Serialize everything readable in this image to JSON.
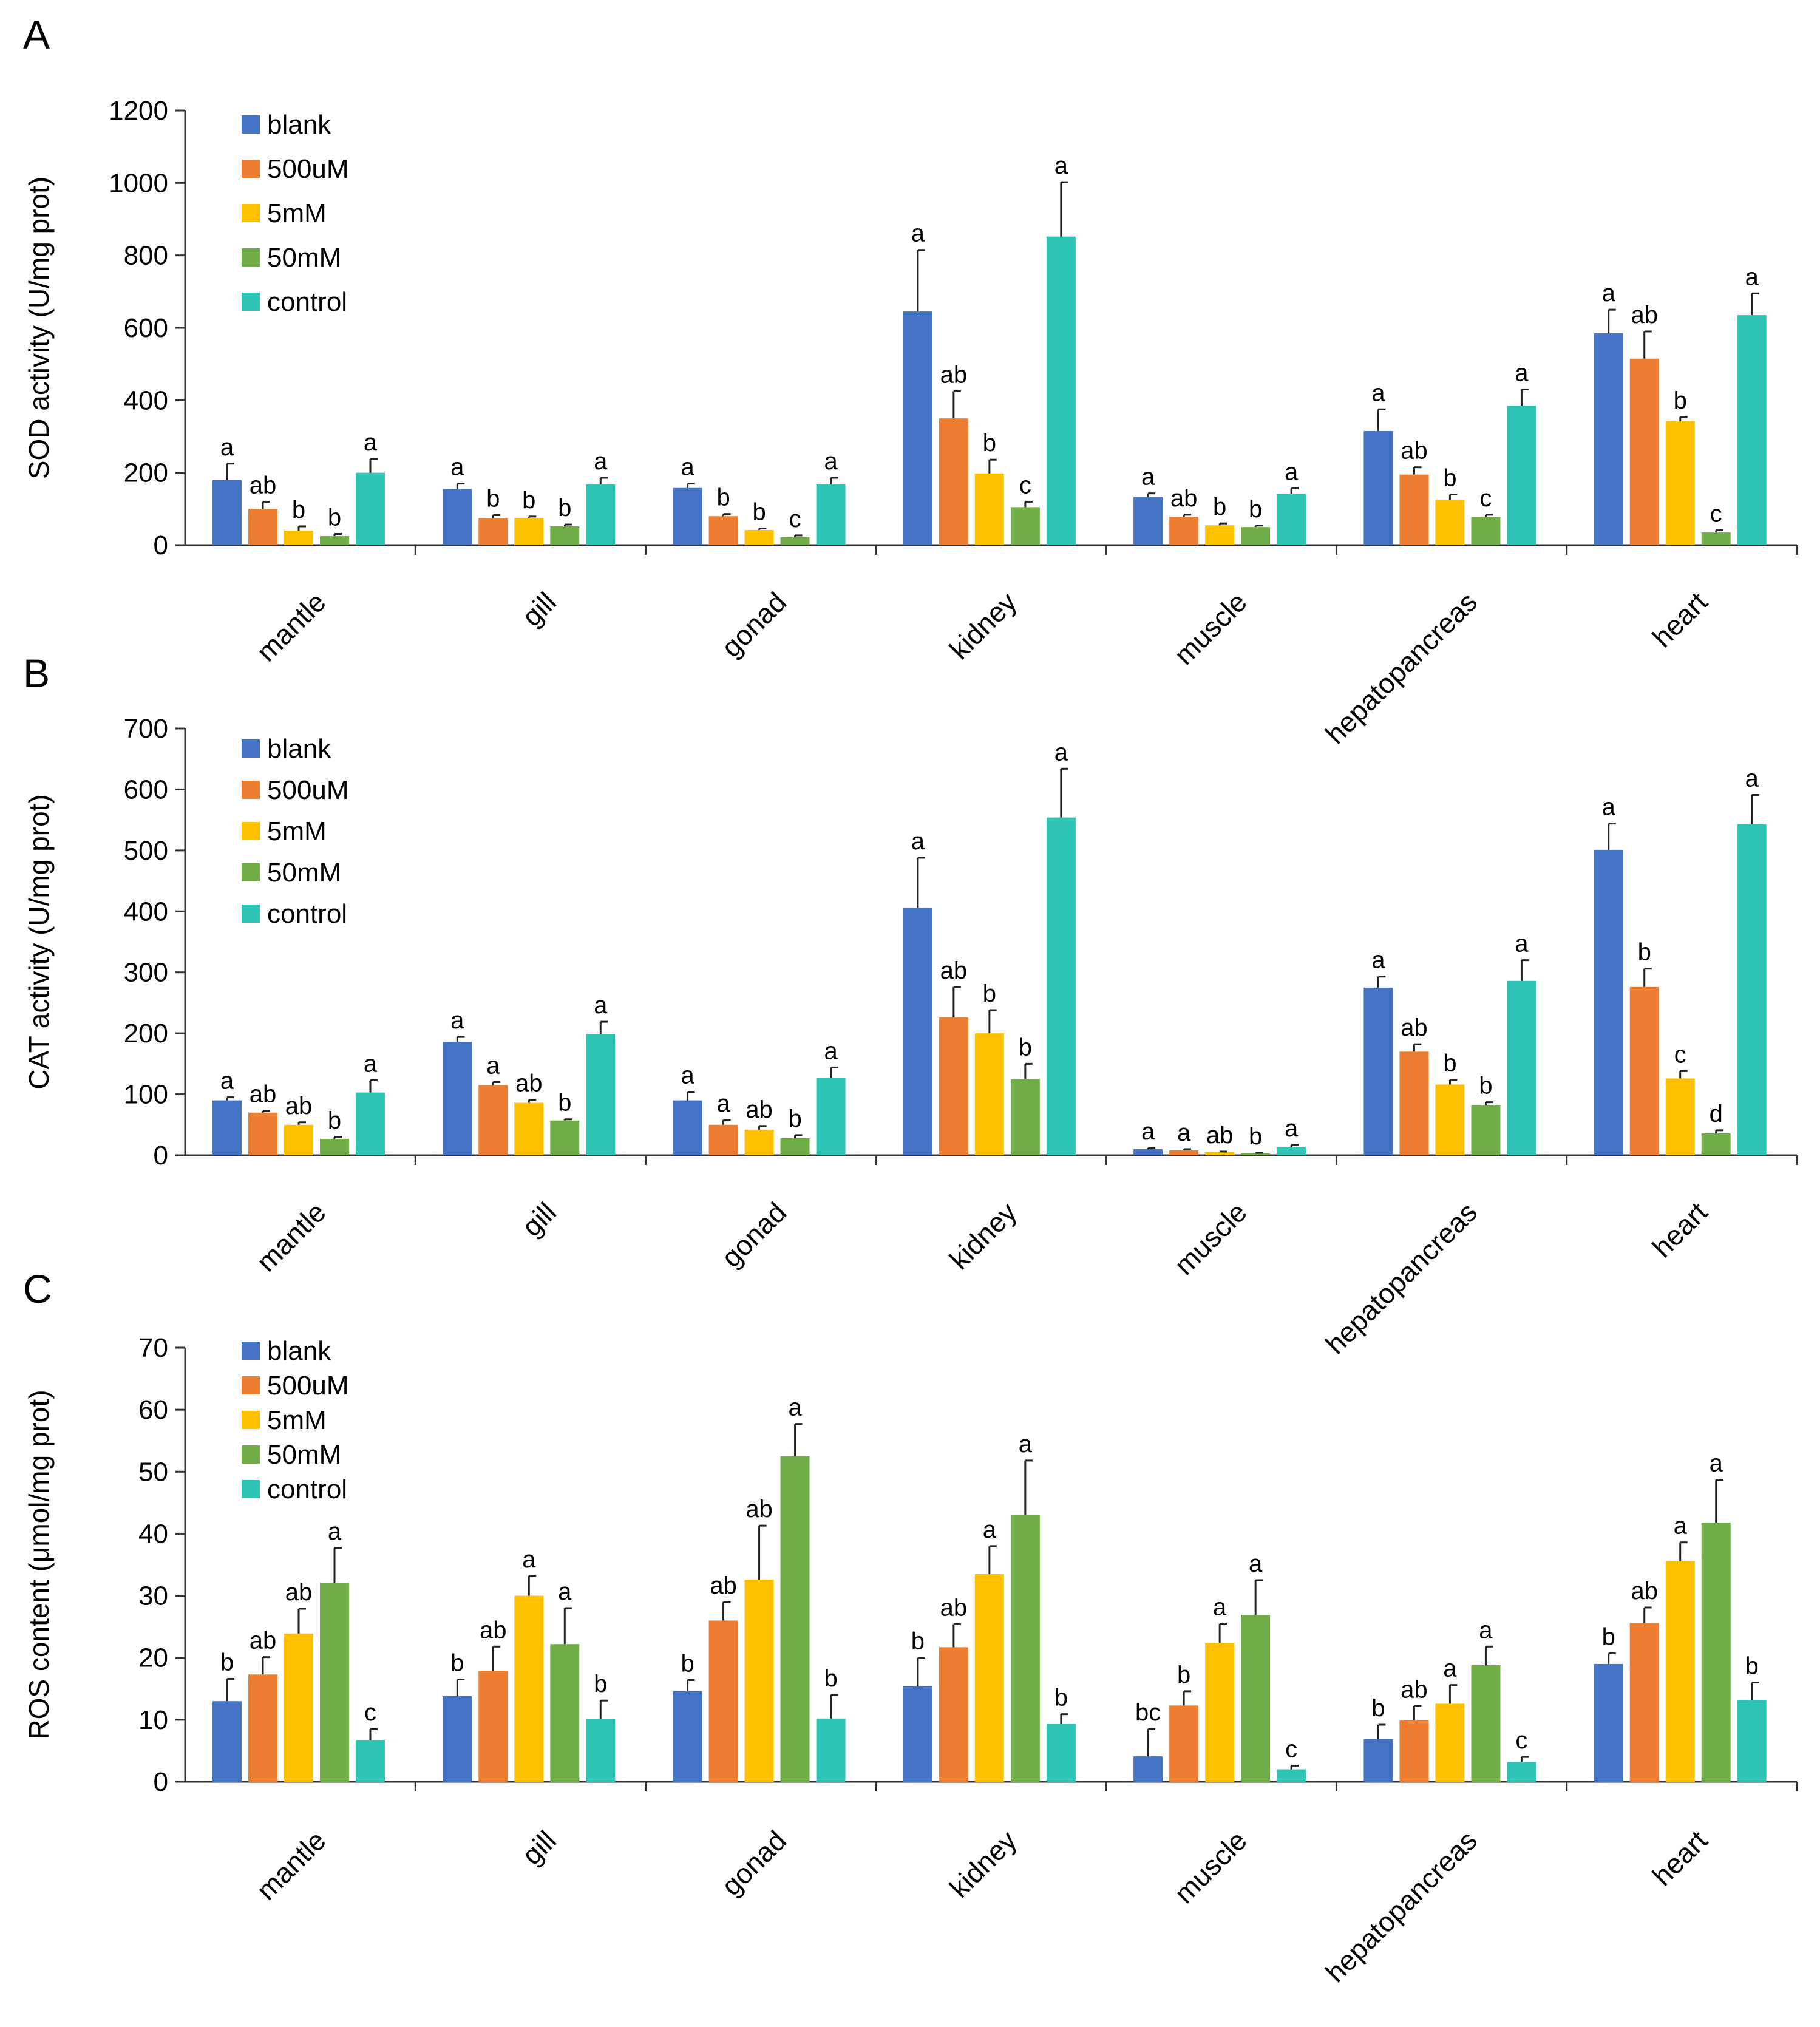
{
  "chart_data": [
    {
      "type": "bar",
      "panel": "A",
      "ylabel": "SOD activity (U/mg prot)",
      "ylim": [
        0,
        1200
      ],
      "yticks": [
        0,
        200,
        400,
        600,
        800,
        1000,
        1200
      ],
      "legend": {
        "placement": "top-left"
      },
      "categories": [
        "mantle",
        "gill",
        "gonad",
        "kidney",
        "muscle",
        "hepatopancreas",
        "heart"
      ],
      "series": [
        {
          "name": "blank",
          "color": "#4472C4",
          "values": [
            180,
            155,
            158,
            645,
            133,
            315,
            585
          ],
          "errors": [
            45,
            15,
            12,
            170,
            10,
            60,
            65
          ],
          "labels": [
            "a",
            "a",
            "a",
            "a",
            "a",
            "a",
            "a"
          ]
        },
        {
          "name": "500uM",
          "color": "#ED7D31",
          "values": [
            100,
            75,
            80,
            350,
            78,
            195,
            515
          ],
          "errors": [
            20,
            8,
            6,
            75,
            6,
            20,
            75
          ],
          "labels": [
            "ab",
            "b",
            "b",
            "ab",
            "ab",
            "ab",
            "ab"
          ]
        },
        {
          "name": "5mM",
          "color": "#FFC000",
          "values": [
            40,
            75,
            42,
            198,
            55,
            125,
            342
          ],
          "errors": [
            12,
            4,
            4,
            38,
            5,
            15,
            12
          ],
          "labels": [
            "b",
            "b",
            "b",
            "b",
            "b",
            "b",
            "b"
          ]
        },
        {
          "name": "50mM",
          "color": "#70AD47",
          "values": [
            25,
            52,
            22,
            105,
            50,
            78,
            35
          ],
          "errors": [
            6,
            5,
            5,
            15,
            4,
            6,
            6
          ],
          "labels": [
            "b",
            "b",
            "c",
            "c",
            "b",
            "c",
            "c"
          ]
        },
        {
          "name": "control",
          "color": "#2EC4B6",
          "values": [
            200,
            168,
            168,
            852,
            142,
            385,
            635
          ],
          "errors": [
            38,
            18,
            18,
            150,
            15,
            45,
            60
          ],
          "labels": [
            "a",
            "a",
            "a",
            "a",
            "a",
            "a",
            "a"
          ]
        }
      ]
    },
    {
      "type": "bar",
      "panel": "B",
      "ylabel": "CAT activity (U/mg prot)",
      "ylim": [
        0,
        700
      ],
      "yticks": [
        0,
        100,
        200,
        300,
        400,
        500,
        600,
        700
      ],
      "legend": {
        "placement": "top-left"
      },
      "categories": [
        "mantle",
        "gill",
        "gonad",
        "kidney",
        "muscle",
        "hepatopancreas",
        "heart"
      ],
      "series": [
        {
          "name": "blank",
          "color": "#4472C4",
          "values": [
            90,
            186,
            90,
            406,
            10,
            275,
            501
          ],
          "errors": [
            5,
            8,
            14,
            82,
            2,
            18,
            43
          ],
          "labels": [
            "a",
            "a",
            "a",
            "a",
            "a",
            "a",
            "a"
          ]
        },
        {
          "name": "500uM",
          "color": "#ED7D31",
          "values": [
            70,
            115,
            50,
            226,
            8,
            170,
            276
          ],
          "errors": [
            3,
            5,
            8,
            50,
            2,
            12,
            30
          ],
          "labels": [
            "ab",
            "a",
            "a",
            "ab",
            "a",
            "ab",
            "b"
          ]
        },
        {
          "name": "5mM",
          "color": "#FFC000",
          "values": [
            50,
            86,
            42,
            200,
            5,
            116,
            126
          ],
          "errors": [
            4,
            5,
            6,
            38,
            1,
            8,
            12
          ],
          "labels": [
            "ab",
            "ab",
            "ab",
            "b",
            "ab",
            "b",
            "c"
          ]
        },
        {
          "name": "50mM",
          "color": "#70AD47",
          "values": [
            27,
            57,
            28,
            125,
            3,
            82,
            36
          ],
          "errors": [
            3,
            2,
            5,
            25,
            1,
            5,
            5
          ],
          "labels": [
            "b",
            "b",
            "b",
            "b",
            "b",
            "b",
            "d"
          ]
        },
        {
          "name": "control",
          "color": "#2EC4B6",
          "values": [
            103,
            199,
            127,
            554,
            14,
            286,
            543
          ],
          "errors": [
            20,
            20,
            17,
            80,
            3,
            34,
            48
          ],
          "labels": [
            "a",
            "a",
            "a",
            "a",
            "a",
            "a",
            "a"
          ]
        }
      ]
    },
    {
      "type": "bar",
      "panel": "C",
      "ylabel": "ROS content (μmol/mg prot)",
      "ylim": [
        0,
        70
      ],
      "yticks": [
        0,
        10,
        20,
        30,
        40,
        50,
        60,
        70
      ],
      "legend": {
        "placement": "top-left"
      },
      "categories": [
        "mantle",
        "gill",
        "gonad",
        "kidney",
        "muscle",
        "hepatopancreas",
        "heart"
      ],
      "series": [
        {
          "name": "blank",
          "color": "#4472C4",
          "values": [
            13,
            13.8,
            14.6,
            15.4,
            4.1,
            6.9,
            19.0
          ],
          "errors": [
            3.6,
            2.7,
            1.8,
            4.6,
            4.4,
            2.3,
            1.7
          ],
          "labels": [
            "b",
            "b",
            "b",
            "b",
            "bc",
            "b",
            "b"
          ]
        },
        {
          "name": "500uM",
          "color": "#ED7D31",
          "values": [
            17.3,
            17.9,
            26.0,
            21.7,
            12.3,
            9.9,
            25.6
          ],
          "errors": [
            2.8,
            3.9,
            3.0,
            3.7,
            2.3,
            2.3,
            2.5
          ],
          "labels": [
            "ab",
            "ab",
            "ab",
            "ab",
            "b",
            "ab",
            "ab"
          ]
        },
        {
          "name": "5mM",
          "color": "#FFC000",
          "values": [
            23.9,
            30.0,
            32.6,
            33.5,
            22.4,
            12.6,
            35.6
          ],
          "errors": [
            4.0,
            3.2,
            8.7,
            4.5,
            3.1,
            3.0,
            3.0
          ],
          "labels": [
            "ab",
            "a",
            "ab",
            "a",
            "a",
            "a",
            "a"
          ]
        },
        {
          "name": "50mM",
          "color": "#70AD47",
          "values": [
            32.1,
            22.2,
            52.5,
            43.0,
            26.9,
            18.8,
            41.8
          ],
          "errors": [
            5.6,
            5.8,
            5.2,
            8.8,
            5.6,
            3.0,
            6.9
          ],
          "labels": [
            "a",
            "a",
            "a",
            "a",
            "a",
            "a",
            "a"
          ]
        },
        {
          "name": "control",
          "color": "#2EC4B6",
          "values": [
            6.7,
            10.1,
            10.2,
            9.3,
            2.0,
            3.2,
            13.2
          ],
          "errors": [
            1.8,
            3.0,
            3.8,
            1.6,
            0.6,
            0.8,
            2.8
          ],
          "labels": [
            "c",
            "b",
            "b",
            "b",
            "c",
            "c",
            "b"
          ]
        }
      ]
    }
  ]
}
